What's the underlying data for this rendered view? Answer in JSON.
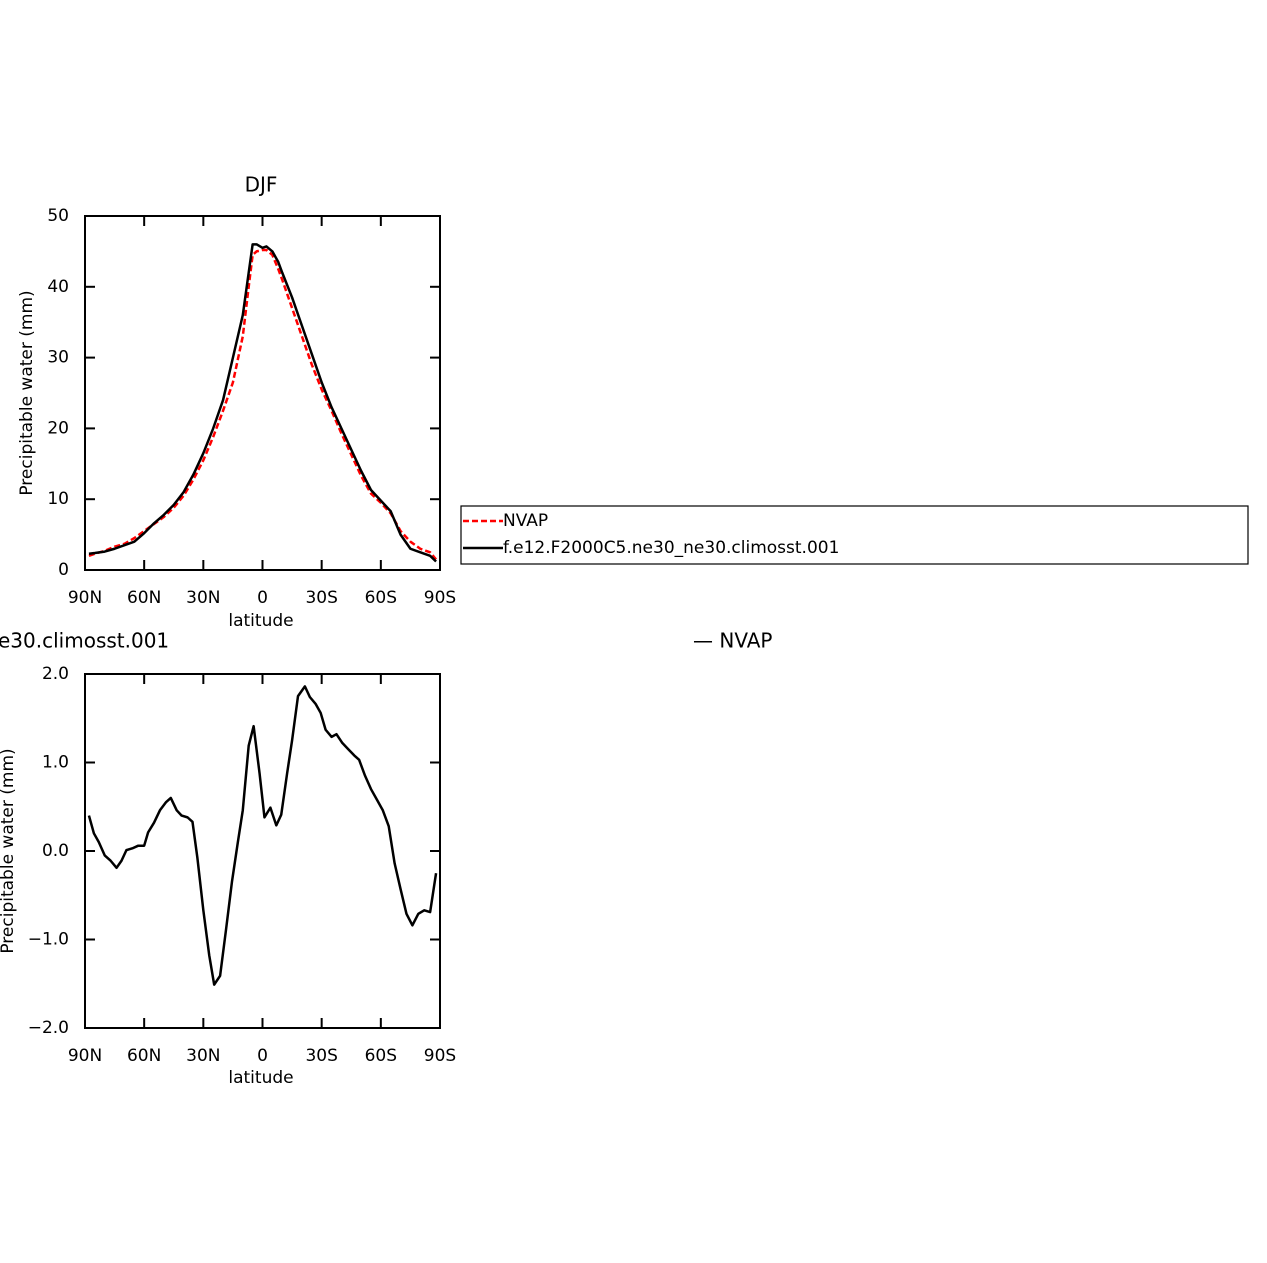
{
  "chart_data": [
    {
      "type": "line",
      "title": "DJF",
      "xlabel": "latitude",
      "ylabel": "Precipitable water (mm)",
      "x": [
        88,
        85,
        80,
        75,
        70,
        65,
        60,
        55,
        50,
        45,
        40,
        35,
        30,
        25,
        20,
        15,
        10,
        7,
        5,
        3,
        0,
        -2,
        -5,
        -8,
        -10,
        -15,
        -20,
        -25,
        -30,
        -35,
        -40,
        -45,
        -50,
        -55,
        -60,
        -65,
        -70,
        -75,
        -80,
        -85,
        -88
      ],
      "series": [
        {
          "name": "NVAP",
          "color": "#ff0000",
          "dash": true,
          "values": [
            2.0,
            2.3,
            2.7,
            3.3,
            3.7,
            4.5,
            5.5,
            6.5,
            7.5,
            8.8,
            10.5,
            12.8,
            15.5,
            18.8,
            22.5,
            26.5,
            33,
            40,
            44.5,
            45,
            45.2,
            45.2,
            44.5,
            42.5,
            41,
            37,
            33,
            29,
            25.5,
            22.5,
            19.3,
            16.3,
            13.3,
            10.8,
            9.5,
            8,
            5.5,
            4,
            3,
            2.5,
            1.5
          ]
        },
        {
          "name": "f.e12.F2000C5.ne30_ne30.climosst.001",
          "color": "#000000",
          "dash": false,
          "values": [
            2.3,
            2.4,
            2.6,
            3.0,
            3.5,
            4.0,
            5.2,
            6.6,
            7.8,
            9.2,
            11,
            13.5,
            16.5,
            20,
            24,
            30,
            36,
            42,
            46.0,
            46.0,
            45.5,
            45.7,
            45.0,
            43.5,
            42,
            38.5,
            34.5,
            30.5,
            26.5,
            23,
            20,
            17,
            14,
            11.3,
            9.8,
            8.3,
            5,
            3,
            2.5,
            2,
            1.2
          ]
        }
      ],
      "xlim": [
        90,
        -90
      ],
      "xticks": [
        {
          "value": 90,
          "label": "90N"
        },
        {
          "value": 60,
          "label": "60N"
        },
        {
          "value": 30,
          "label": "30N"
        },
        0,
        {
          "value": -30,
          "label": "30S"
        },
        {
          "value": -60,
          "label": "60S"
        },
        {
          "value": -90,
          "label": "90S"
        }
      ],
      "ylim": [
        0,
        50
      ],
      "yticks": [
        0,
        10,
        20,
        30,
        40,
        50
      ]
    },
    {
      "type": "line",
      "title_left": "e30.climosst.001",
      "title_right": "— NVAP",
      "xlabel": "latitude",
      "ylabel": "Precipitable water (mm)",
      "x": [
        88,
        85.5,
        83,
        80,
        77,
        74,
        71.5,
        69,
        66,
        63,
        60,
        58,
        55,
        52,
        49,
        46.5,
        43.5,
        41,
        38,
        35.5,
        33,
        30,
        27,
        24.5,
        21.5,
        18.5,
        15.5,
        12.5,
        10,
        7,
        4.5,
        1.5,
        -1,
        -4,
        -7,
        -9.5,
        -12.5,
        -15,
        -18,
        -21.5,
        -24,
        -27,
        -29.5,
        -32,
        -35,
        -37.5,
        -40.5,
        -43.5,
        -46.5,
        -49,
        -52,
        -55,
        -58,
        -61,
        -64,
        -67,
        -70,
        -73,
        -76,
        -79,
        -82,
        -85,
        -88
      ],
      "values": [
        0.4,
        0.2,
        0.1,
        -0.05,
        -0.11,
        -0.19,
        -0.11,
        0.01,
        0.03,
        0.06,
        0.06,
        0.21,
        0.32,
        0.46,
        0.55,
        0.6,
        0.46,
        0.4,
        0.38,
        0.33,
        -0.08,
        -0.67,
        -1.18,
        -1.51,
        -1.41,
        -0.89,
        -0.35,
        0.1,
        0.46,
        1.19,
        1.41,
        0.88,
        0.38,
        0.49,
        0.29,
        0.41,
        0.88,
        1.25,
        1.75,
        1.86,
        1.74,
        1.66,
        1.56,
        1.37,
        1.29,
        1.32,
        1.22,
        1.15,
        1.08,
        1.03,
        0.85,
        0.7,
        0.58,
        0.46,
        0.28,
        -0.14,
        -0.43,
        -0.71,
        -0.84,
        -0.71,
        -0.67,
        -0.69,
        -0.25
      ],
      "color": "#000000",
      "xlim": [
        90,
        -90
      ],
      "xticks": [
        {
          "value": 90,
          "label": "90N"
        },
        {
          "value": 60,
          "label": "60N"
        },
        {
          "value": 30,
          "label": "30N"
        },
        0,
        {
          "value": -30,
          "label": "30S"
        },
        {
          "value": -60,
          "label": "60S"
        },
        {
          "value": -90,
          "label": "90S"
        }
      ],
      "ylim": [
        -2,
        2
      ],
      "yticks": [
        {
          "value": -2,
          "label": "−2.0"
        },
        {
          "value": -1,
          "label": "−1.0"
        },
        {
          "value": 0,
          "label": "0.0"
        },
        {
          "value": 1,
          "label": "1.0"
        },
        {
          "value": 2,
          "label": "2.0"
        }
      ]
    }
  ]
}
